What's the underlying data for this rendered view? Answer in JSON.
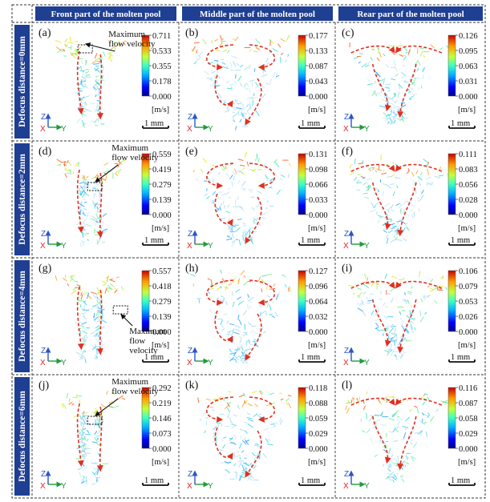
{
  "headers": [
    "Front part of the molten pool",
    "Middle part of the molten pool",
    "Rear part of the molten pool"
  ],
  "row_labels": [
    "Defocus distance=0mm",
    "Defocus distance=2mm",
    "Defocus distance=4mm",
    "Defocus distance=6mm"
  ],
  "unit": "[m/s]",
  "scale_bar": "1 mm",
  "axes": {
    "z": "Z",
    "x": "X",
    "y": "Y"
  },
  "colors": {
    "header_bg": "#1f3f93",
    "axis_z": "#2a56c9",
    "axis_x": "#e02020",
    "axis_y": "#1f9a3c",
    "arrow": "#e03020"
  },
  "panels": [
    {
      "label": "(a)",
      "ticks": [
        "0.711",
        "0.533",
        "0.355",
        "0.178",
        "0.000"
      ],
      "annotation": [
        "Maximum",
        "flow velocity"
      ],
      "shape": "front"
    },
    {
      "label": "(b)",
      "ticks": [
        "0.177",
        "0.133",
        "0.087",
        "0.043",
        "0.000"
      ],
      "shape": "middle"
    },
    {
      "label": "(c)",
      "ticks": [
        "0.126",
        "0.095",
        "0.063",
        "0.031",
        "0.000"
      ],
      "shape": "rear"
    },
    {
      "label": "(d)",
      "ticks": [
        "0.559",
        "0.419",
        "0.279",
        "0.139",
        "0.000"
      ],
      "annotation": [
        "Maximum",
        "flow velocity"
      ],
      "shape": "front"
    },
    {
      "label": "(e)",
      "ticks": [
        "0.131",
        "0.098",
        "0.066",
        "0.033",
        "0.000"
      ],
      "shape": "middle"
    },
    {
      "label": "(f)",
      "ticks": [
        "0.111",
        "0.083",
        "0.056",
        "0.028",
        "0.000"
      ],
      "shape": "rear"
    },
    {
      "label": "(g)",
      "ticks": [
        "0.557",
        "0.418",
        "0.279",
        "0.139",
        "0.000"
      ],
      "annotation": [
        "Maximum",
        "flow",
        "velocity"
      ],
      "shape": "front"
    },
    {
      "label": "(h)",
      "ticks": [
        "0.127",
        "0.096",
        "0.064",
        "0.032",
        "0.000"
      ],
      "shape": "middle"
    },
    {
      "label": "(i)",
      "ticks": [
        "0.106",
        "0.079",
        "0.053",
        "0.026",
        "0.000"
      ],
      "shape": "rear"
    },
    {
      "label": "(j)",
      "ticks": [
        "0.292",
        "0.219",
        "0.146",
        "0.073",
        "0.000"
      ],
      "annotation": [
        "Maximum",
        "flow velocity"
      ],
      "shape": "front"
    },
    {
      "label": "(k)",
      "ticks": [
        "0.118",
        "0.088",
        "0.059",
        "0.029",
        "0.000"
      ],
      "shape": "middle"
    },
    {
      "label": "(l)",
      "ticks": [
        "0.116",
        "0.087",
        "0.058",
        "0.029",
        "0.000"
      ],
      "shape": "rear"
    }
  ]
}
